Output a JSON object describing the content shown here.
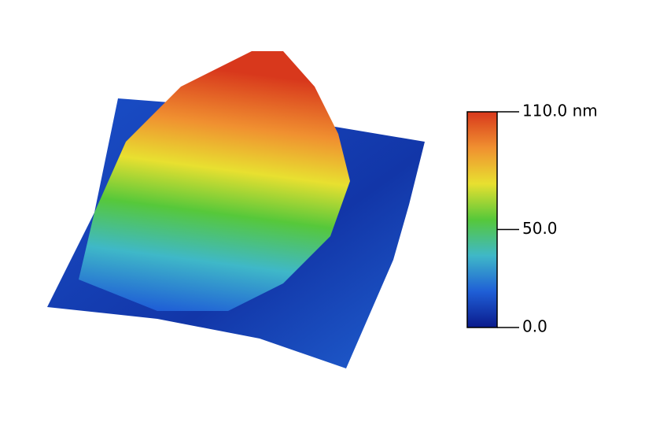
{
  "chart_data": {
    "type": "surface",
    "colorbar": {
      "lim": [
        0,
        110
      ],
      "ticks": [
        {
          "value": 0,
          "label": "0.0"
        },
        {
          "value": 50,
          "label": "50.0"
        },
        {
          "value": 110,
          "label": "110.0 nm"
        }
      ],
      "colors": [
        "#0a1a8c",
        "#1f5fd6",
        "#3fb8c8",
        "#56c83a",
        "#e8e030",
        "#f09030",
        "#d8381c"
      ]
    }
  }
}
